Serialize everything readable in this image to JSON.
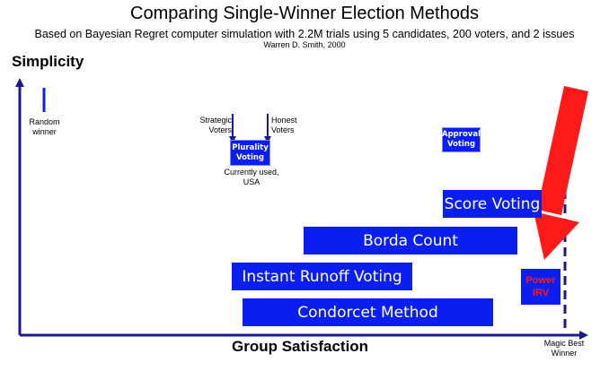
{
  "title": "Comparing Single-Winner Election Methods",
  "subtitle": "Based on Bayesian Regret computer simulation with 2.2M trials using 5 candidates, 200 voters, and 2 issues",
  "credit": "Warren D. Smith, 2000",
  "axes": {
    "y_label": "Simplicity",
    "x_label": "Group Satisfaction"
  },
  "annotations": {
    "random_winner": "Random\nwinner",
    "strategic_voters": "Strategic\nVoters",
    "honest_voters": "Honest\nVoters",
    "currently_used": "Currently used,\nUSA",
    "magic_best_winner": "Magic Best\nWinner"
  },
  "methods": {
    "plurality": "Plurality\nVoting",
    "approval": "Approval\nVoting",
    "score": "Score Voting",
    "borda": "Borda Count",
    "irv": "Instant Runoff Voting",
    "condorcet": "Condorcet Method",
    "power_irv": "Power\nIRV"
  },
  "colors": {
    "box_blue": "#0a1ef0",
    "axis_blue": "#1a1a8c",
    "highlight_red": "#ff1a1a"
  }
}
